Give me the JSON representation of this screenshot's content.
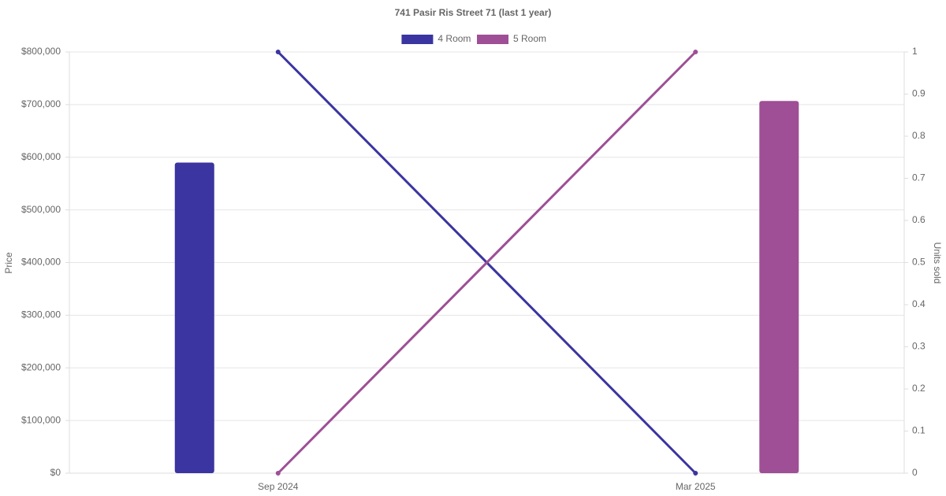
{
  "chart_data": {
    "type": "bar",
    "title": "741 Pasir Ris Street 71 (last 1 year)",
    "categories": [
      "Sep 2024",
      "Mar 2025"
    ],
    "series": [
      {
        "name": "4 Room",
        "color": "#3a35a0",
        "values": [
          590000,
          null
        ],
        "units_sold": [
          1,
          0
        ]
      },
      {
        "name": "5 Room",
        "color": "#9e4f96",
        "values": [
          null,
          707000
        ],
        "units_sold": [
          0,
          1
        ]
      }
    ],
    "y_label": "Price",
    "y2_label": "Units sold",
    "ylim": [
      0,
      800000
    ],
    "yticks": [
      {
        "value": 0,
        "label": "$0"
      },
      {
        "value": 100000,
        "label": "$100,000"
      },
      {
        "value": 200000,
        "label": "$200,000"
      },
      {
        "value": 300000,
        "label": "$300,000"
      },
      {
        "value": 400000,
        "label": "$400,000"
      },
      {
        "value": 500000,
        "label": "$500,000"
      },
      {
        "value": 600000,
        "label": "$600,000"
      },
      {
        "value": 700000,
        "label": "$700,000"
      },
      {
        "value": 800000,
        "label": "$800,000"
      }
    ],
    "y2lim": [
      0,
      1
    ],
    "y2ticks": [
      0,
      0.1,
      0.2,
      0.3,
      0.4,
      0.5,
      0.6,
      0.7,
      0.8,
      0.9,
      1
    ],
    "grid": true,
    "legend": "top"
  }
}
